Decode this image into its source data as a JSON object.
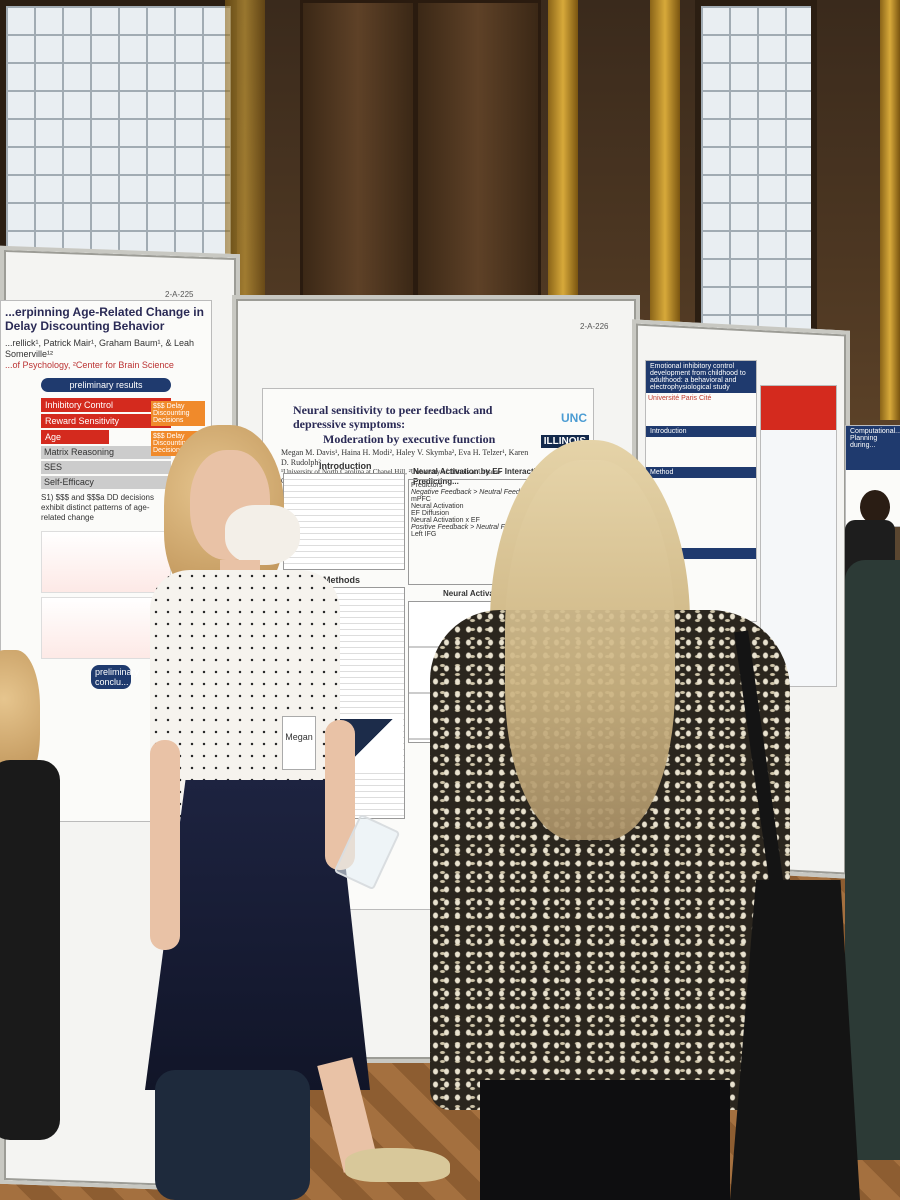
{
  "scene": "poster-session",
  "boards": {
    "left_code": "2-A-225",
    "center_code": "2-A-226"
  },
  "left_poster": {
    "title": "...erpinning Age-Related Change in Delay Discounting Behavior",
    "authors": "...rellick¹, Patrick Mair¹, Graham Baum¹, & Leah Somerville¹²",
    "affiliation": "...of Psychology, ²Center for Brain Science",
    "preliminary_results": "preliminary results",
    "chips": [
      "Inhibitory Control",
      "Reward Sensitivity",
      "Age",
      "Matrix Reasoning",
      "SES",
      "Self-Efficacy"
    ],
    "orange_chips": [
      "$$$ Delay Discounting Decisions",
      "$$$ Delay Discounting Decisions"
    ],
    "preliminary_conclusions": "preliminary conclu...",
    "item_s1": "S1) $$$ and $$$a DD decisions exhibit distinct patterns of age-related change"
  },
  "center_poster": {
    "title": "Neural sensitivity to peer feedback and depressive symptoms:",
    "subtitle": "Moderation by executive function",
    "authors": "Megan M. Davis¹, Haina H. Modi², Haley V. Skymba², Eva H. Telzer¹, Karen D. Rudolph²",
    "affiliations": "¹University of North Carolina at Chapel Hill, ²University of Illinois at Urbana-Champaign",
    "logo_unc": "UNC",
    "logo_illinois": "ILLINOIS",
    "section_intro": "Introduction",
    "section_methods": "Methods",
    "table_title": "Neural Activation by EF Interactions Predicting...",
    "table_sub_neg": "Negative Feedback > Neutral Feedb...",
    "table_sub_pos": "Positive Feedback > Neutral Feedba...",
    "table_col": "mPFC",
    "table_col2": "Left IFG",
    "rows": [
      "Predictors",
      "Neural Activation",
      "EF Diffusion",
      "Neural Activation x EF"
    ],
    "graph_title": "Neural Activation x EF → Depressiv..."
  },
  "right_poster": {
    "title": "Emotional inhibitory control development from childhood to adulthood: a behavioral and electrophysiological study",
    "institution": "Université Paris Cité",
    "sec_intro": "Introduction",
    "sec_method": "Method",
    "sec_results": "Results"
  },
  "far_right_poster": {
    "title": "Computational... Planning during..."
  },
  "badge": {
    "name": "Megan"
  }
}
